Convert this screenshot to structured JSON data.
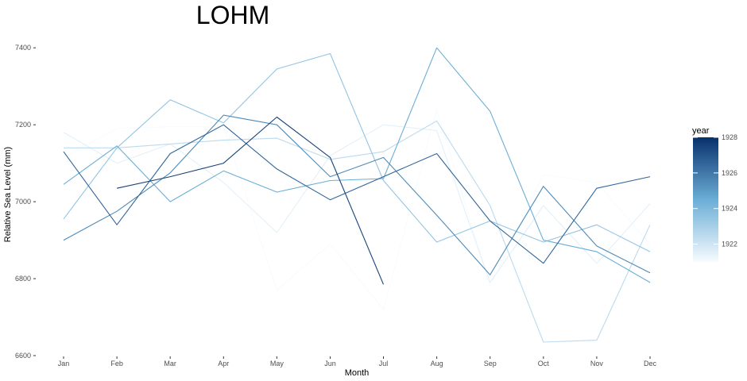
{
  "chart_data": {
    "type": "line",
    "title": "LOHM",
    "xlabel": "Month",
    "ylabel": "Relative Sea Level (mm)",
    "categories": [
      "Jan",
      "Feb",
      "Mar",
      "Apr",
      "May",
      "Jun",
      "Jul",
      "Aug",
      "Sep",
      "Oct",
      "Nov",
      "Dec"
    ],
    "ylim": [
      6600,
      7450
    ],
    "yticks": [
      6600,
      6800,
      7000,
      7200,
      7400
    ],
    "grid": false,
    "legend": {
      "title": "year",
      "placement": "right",
      "min_year": 1921,
      "max_year": 1928,
      "labels": [
        1922,
        1924,
        1926,
        1928
      ],
      "color_low": "#f7fbff",
      "color_high": "#08306b"
    },
    "series": [
      {
        "year": 1921,
        "values": [
          7115,
          7190,
          7195,
          7195,
          6770,
          6890,
          6720,
          7240,
          6780,
          7070,
          7050,
          6890
        ]
      },
      {
        "year": 1921.5,
        "values": [
          7180,
          7100,
          7150,
          7050,
          6920,
          7120,
          7200,
          7185,
          6790,
          6990,
          6840,
          6995
        ]
      },
      {
        "year": 1922.5,
        "values": [
          7140,
          7140,
          7150,
          7160,
          7165,
          7110,
          7130,
          7210,
          6990,
          6635,
          6640,
          6940
        ]
      },
      {
        "year": 1923.5,
        "values": [
          6955,
          7140,
          7265,
          7205,
          7345,
          7385,
          7055,
          6895,
          6950,
          6895,
          6940,
          6870
        ]
      },
      {
        "year": 1924.5,
        "values": [
          7045,
          7145,
          7000,
          7080,
          7025,
          7055,
          7060,
          7400,
          7235,
          6900,
          6870,
          6790
        ]
      },
      {
        "year": 1925.5,
        "values": [
          6900,
          6975,
          7075,
          7225,
          7200,
          7065,
          7115,
          6965,
          6810,
          7040,
          6885,
          6815
        ]
      },
      {
        "year": 1926.5,
        "values": [
          7130,
          6940,
          7125,
          7200,
          7085,
          7005,
          7065,
          7125,
          6950,
          6840,
          7035,
          7065
        ]
      },
      {
        "year": 1927.5,
        "values": [
          null,
          7035,
          7065,
          7100,
          7220,
          7115,
          6785,
          null,
          null,
          null,
          null,
          null
        ]
      }
    ]
  }
}
